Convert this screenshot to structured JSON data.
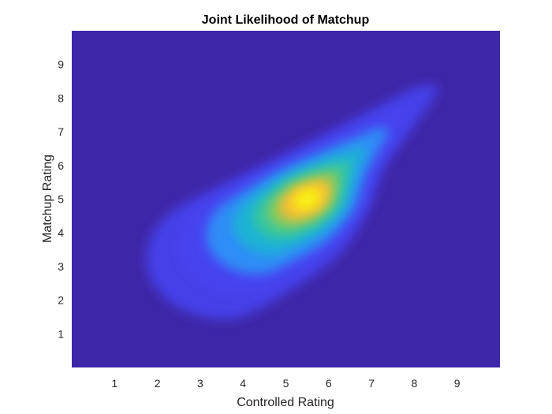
{
  "chart_data": {
    "type": "heatmap",
    "subtype": "filled-contour",
    "title": "Joint Likelihood of Matchup",
    "xlabel": "Controlled Rating",
    "ylabel": "Matchup Rating",
    "xlim": [
      0,
      10
    ],
    "ylim": [
      0,
      10
    ],
    "xticks": [
      "1",
      "2",
      "3",
      "4",
      "5",
      "6",
      "7",
      "8",
      "9"
    ],
    "yticks": [
      "1",
      "2",
      "3",
      "4",
      "5",
      "6",
      "7",
      "8",
      "9"
    ],
    "peak": {
      "x": 5.5,
      "y": 5.0
    },
    "density_shape": "skewed ellipse along x≈y diagonal, tail extending toward (8.5, 8.3) and broad lower lobe toward (2, 3)",
    "colormap": [
      "#3E26A8",
      "#4743F0",
      "#2F8DF7",
      "#1AB2D5",
      "#37C79B",
      "#8BC95A",
      "#F9BB36",
      "#F6E11F",
      "#F9FB0E"
    ],
    "background_color": "#3E26A8",
    "grid": false,
    "legend": "none"
  }
}
